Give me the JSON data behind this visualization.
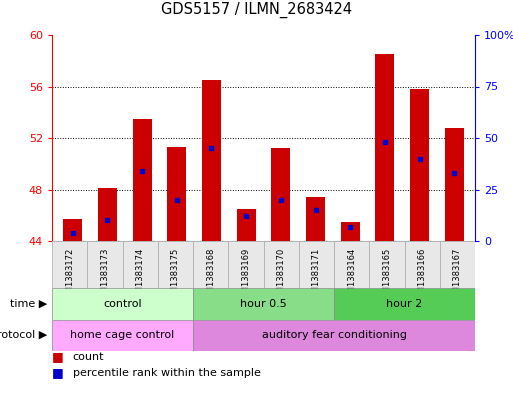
{
  "title": "GDS5157 / ILMN_2683424",
  "samples": [
    "GSM1383172",
    "GSM1383173",
    "GSM1383174",
    "GSM1383175",
    "GSM1383168",
    "GSM1383169",
    "GSM1383170",
    "GSM1383171",
    "GSM1383164",
    "GSM1383165",
    "GSM1383166",
    "GSM1383167"
  ],
  "counts": [
    45.7,
    48.1,
    53.5,
    51.3,
    56.5,
    46.5,
    51.2,
    47.4,
    45.5,
    58.5,
    55.8,
    52.8
  ],
  "percentiles": [
    4,
    10,
    34,
    20,
    45,
    12,
    20,
    15,
    7,
    48,
    40,
    33
  ],
  "ymin": 44,
  "ymax": 60,
  "yright_min": 0,
  "yright_max": 100,
  "yticks_left": [
    44,
    48,
    52,
    56,
    60
  ],
  "yticks_right": [
    0,
    25,
    50,
    75,
    100
  ],
  "bar_color": "#cc0000",
  "marker_color": "#0000cc",
  "bg_color": "#ffffff",
  "time_groups": [
    {
      "label": "control",
      "start": 0,
      "end": 4,
      "color": "#ccffcc"
    },
    {
      "label": "hour 0.5",
      "start": 4,
      "end": 8,
      "color": "#88dd88"
    },
    {
      "label": "hour 2",
      "start": 8,
      "end": 12,
      "color": "#55cc55"
    }
  ],
  "protocol_groups": [
    {
      "label": "home cage control",
      "start": 0,
      "end": 4,
      "color": "#ffaaff"
    },
    {
      "label": "auditory fear conditioning",
      "start": 4,
      "end": 12,
      "color": "#dd88dd"
    }
  ],
  "legend_count": "count",
  "legend_percentile": "percentile rank within the sample"
}
